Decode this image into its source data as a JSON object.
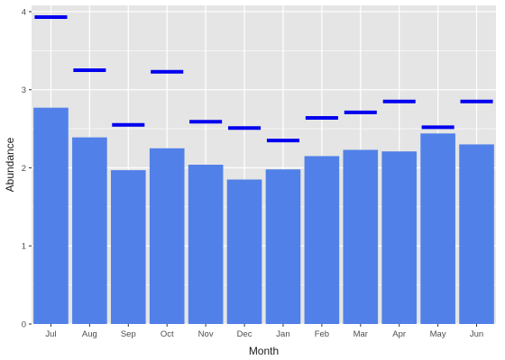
{
  "chart_data": {
    "type": "bar",
    "categories": [
      "Jul",
      "Aug",
      "Sep",
      "Oct",
      "Nov",
      "Dec",
      "Jan",
      "Feb",
      "Mar",
      "Apr",
      "May",
      "Jun"
    ],
    "series": [
      {
        "mark": "bar",
        "values": [
          2.77,
          2.39,
          1.97,
          2.25,
          2.04,
          1.85,
          1.98,
          2.15,
          2.23,
          2.21,
          2.44,
          2.3
        ],
        "color": "#5181e8"
      },
      {
        "mark": "horizontal-segment",
        "values": [
          3.93,
          3.25,
          2.55,
          3.23,
          2.59,
          2.51,
          2.35,
          2.64,
          2.71,
          2.85,
          2.52,
          2.85
        ],
        "color": "#0000ee"
      }
    ],
    "title": "",
    "xlabel": "Month",
    "ylabel": "Abundance",
    "ylim": [
      0,
      4.08
    ],
    "yticks": [
      "0",
      "1",
      "2",
      "3",
      "4"
    ],
    "grid": true,
    "panel_background": "#e5e5e5",
    "grid_color": "#ffffff",
    "legend": "none"
  }
}
